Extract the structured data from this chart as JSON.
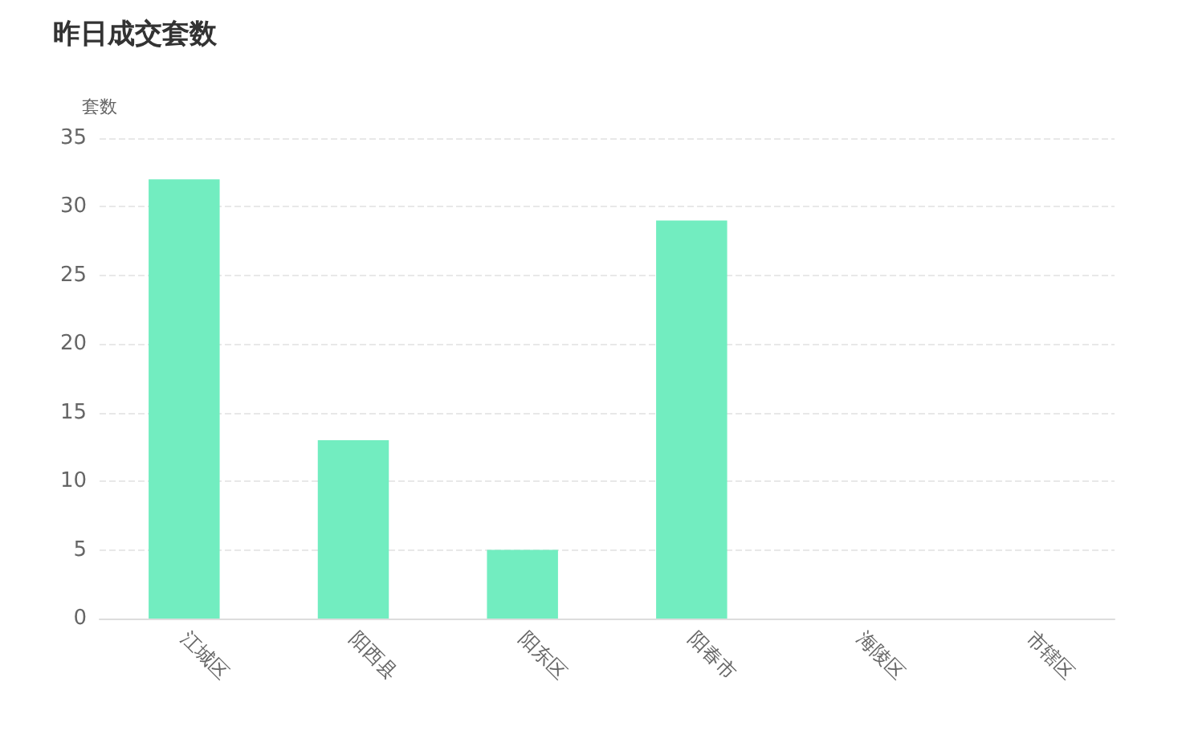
{
  "chart_data": {
    "type": "bar",
    "title": "昨日成交套数",
    "ylabel": "套数",
    "categories": [
      "江城区",
      "阳西县",
      "阳东区",
      "阳春市",
      "海陵区",
      "市辖区"
    ],
    "values": [
      32,
      13,
      5,
      29,
      0,
      0
    ],
    "color": "#72edc0",
    "ylim": [
      0,
      35
    ],
    "yticks": [
      0,
      5,
      10,
      15,
      20,
      25,
      30,
      35
    ],
    "grid": "y"
  }
}
